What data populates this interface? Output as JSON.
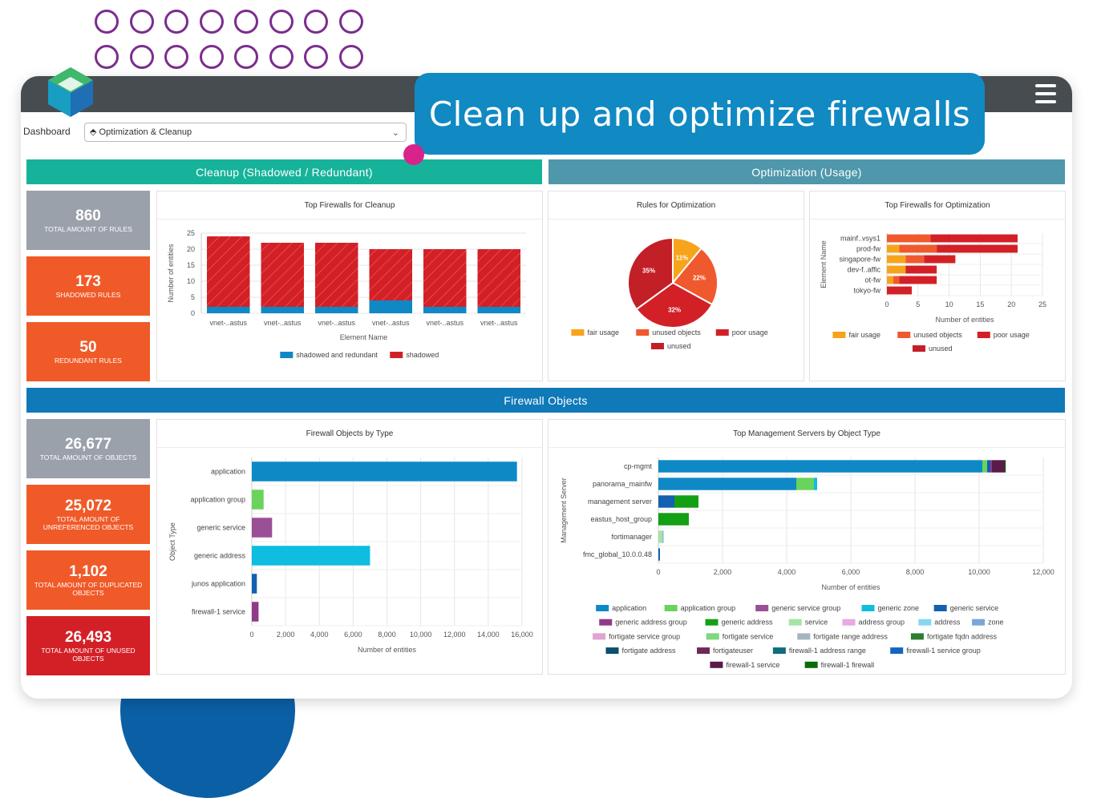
{
  "banner": "Clean up and optimize firewalls",
  "dashboard": {
    "label": "Dashboard",
    "selected": "Optimization & Cleanup"
  },
  "sections": {
    "cleanup": "Cleanup (Shadowed / Redundant)",
    "optimization": "Optimization (Usage)",
    "objects": "Firewall Objects"
  },
  "colors": {
    "teal": "#16b39a",
    "slate": "#4f97ab",
    "blue": "#1079b8",
    "gray": "#9aa1ab",
    "orange": "#f05a28",
    "red": "#d32027",
    "fair": "#f6a41b",
    "unused_objects": "#f0592d",
    "poor": "#d32027"
  },
  "kpis_rules": [
    {
      "num": "860",
      "label": "TOTAL AMOUNT OF RULES",
      "color": "gray"
    },
    {
      "num": "173",
      "label": "SHADOWED RULES",
      "color": "orange"
    },
    {
      "num": "50",
      "label": "REDUNDANT RULES",
      "color": "orange"
    }
  ],
  "kpis_objects": [
    {
      "num": "26,677",
      "label": "TOTAL AMOUNT OF OBJECTS",
      "color": "gray"
    },
    {
      "num": "25,072",
      "label": "TOTAL AMOUNT OF UNREFERENCED OBJECTS",
      "color": "orange"
    },
    {
      "num": "1,102",
      "label": "TOTAL AMOUNT OF DUPLICATED OBJECTS",
      "color": "orange"
    },
    {
      "num": "26,493",
      "label": "TOTAL AMOUNT OF UNUSED OBJECTS",
      "color": "red"
    }
  ],
  "chart_data": [
    {
      "type": "bar",
      "title": "Top Firewalls for Cleanup",
      "categories": [
        "vnet-..astus",
        "vnet-..astus",
        "vnet-..astus",
        "vnet-..astus",
        "vnet-..astus",
        "vnet-..astus"
      ],
      "series": [
        {
          "name": "shadowed and redundant",
          "values": [
            2,
            2,
            2,
            4,
            2,
            2
          ],
          "color": "#0e89c6"
        },
        {
          "name": "shadowed",
          "values": [
            22,
            20,
            20,
            16,
            18,
            18
          ],
          "color": "#d32027"
        }
      ],
      "stacked": true,
      "xlabel": "Element Name",
      "ylabel": "Number of entities",
      "ylim": [
        0,
        25
      ],
      "yticks": [
        0,
        5,
        10,
        15,
        20,
        25
      ],
      "legend": "bottom"
    },
    {
      "type": "pie",
      "title": "Rules for Optimization",
      "slices": [
        {
          "name": "fair usage",
          "value": 11,
          "label": "11%",
          "color": "#f6a41b"
        },
        {
          "name": "unused objects",
          "value": 22,
          "label": "22%",
          "color": "#f0592d"
        },
        {
          "name": "poor usage",
          "value": 32,
          "label": "32%",
          "color": "#d32027"
        },
        {
          "name": "unused",
          "value": 35,
          "label": "35%",
          "color": "#c31f26"
        }
      ],
      "legend": "bottom"
    },
    {
      "type": "bar",
      "orientation": "horizontal",
      "title": "Top Firewalls for Optimization",
      "categories": [
        "mainf..vsys1",
        "prod-fw",
        "singapore-fw",
        "dev-f..affic",
        "ot-fw",
        "tokyo-fw"
      ],
      "series": [
        {
          "name": "fair usage",
          "values": [
            0,
            2,
            3,
            3,
            1,
            0
          ],
          "color": "#f6a41b"
        },
        {
          "name": "unused objects",
          "values": [
            7,
            6,
            3,
            0,
            1,
            0
          ],
          "color": "#f0592d"
        },
        {
          "name": "poor usage",
          "values": [
            14,
            13,
            5,
            5,
            6,
            4
          ],
          "color": "#d32027"
        },
        {
          "name": "unused",
          "values": [
            0,
            0,
            0,
            0,
            0,
            0
          ],
          "color": "#c31f26"
        }
      ],
      "stacked": true,
      "xlabel": "Number of entities",
      "ylabel": "Element Name",
      "xlim": [
        0,
        25
      ],
      "xticks": [
        0,
        5,
        10,
        15,
        20,
        25
      ],
      "legend": "bottom"
    },
    {
      "type": "bar",
      "orientation": "horizontal",
      "title": "Firewall Objects by Type",
      "categories": [
        "application",
        "application group",
        "generic service",
        "generic address",
        "junos application",
        "firewall-1 service"
      ],
      "values": [
        15700,
        700,
        1200,
        7000,
        300,
        400
      ],
      "colors": [
        "#0e89c6",
        "#6ad35b",
        "#9b4f96",
        "#0fbde0",
        "#1361b0",
        "#8f3b86"
      ],
      "xlabel": "Number of entities",
      "ylabel": "Object Type",
      "xlim": [
        0,
        16000
      ],
      "xticks": [
        "0",
        "2,000",
        "4,000",
        "6,000",
        "8,000",
        "10,000",
        "12,000",
        "14,000",
        "16,000"
      ]
    },
    {
      "type": "bar",
      "orientation": "horizontal",
      "title": "Top Management Servers by Object Type",
      "categories": [
        "cp-mgmt",
        "panorama_mainfw",
        "management server",
        "eastus_host_group",
        "fortimanager",
        "fmc_global_10.0.0.48"
      ],
      "series": [
        {
          "name": "application",
          "values": [
            10100,
            4300,
            0,
            0,
            0,
            0
          ],
          "color": "#0e89c6"
        },
        {
          "name": "application group",
          "values": [
            150,
            550,
            0,
            0,
            0,
            0
          ],
          "color": "#6ad35b"
        },
        {
          "name": "generic service group",
          "values": [
            0,
            0,
            0,
            0,
            0,
            0
          ],
          "color": "#9b4f96"
        },
        {
          "name": "generic zone",
          "values": [
            0,
            100,
            0,
            0,
            0,
            0
          ],
          "color": "#0fbde0"
        },
        {
          "name": "generic service",
          "values": [
            100,
            0,
            500,
            0,
            0,
            50
          ],
          "color": "#1361b0"
        },
        {
          "name": "generic address group",
          "values": [
            50,
            0,
            0,
            0,
            0,
            0
          ],
          "color": "#8f3b86"
        },
        {
          "name": "generic address",
          "values": [
            0,
            0,
            750,
            950,
            0,
            0
          ],
          "color": "#14a014"
        },
        {
          "name": "service",
          "values": [
            0,
            0,
            0,
            0,
            130,
            0
          ],
          "color": "#a6e4a6"
        },
        {
          "name": "address group",
          "values": [
            0,
            0,
            0,
            0,
            0,
            0
          ],
          "color": "#e7a9de"
        },
        {
          "name": "address",
          "values": [
            0,
            0,
            0,
            0,
            0,
            0
          ],
          "color": "#85d8f0"
        },
        {
          "name": "zone",
          "values": [
            0,
            0,
            0,
            0,
            30,
            0
          ],
          "color": "#7aa6d8"
        },
        {
          "name": "fortigate service group",
          "values": [
            0,
            0,
            0,
            0,
            0,
            0
          ],
          "color": "#e0a3cf"
        },
        {
          "name": "fortigate service",
          "values": [
            0,
            0,
            0,
            0,
            0,
            0
          ],
          "color": "#7fd77f"
        },
        {
          "name": "fortigate range address",
          "values": [
            0,
            0,
            0,
            0,
            0,
            0
          ],
          "color": "#a6b4c0"
        },
        {
          "name": "fortigate fqdn address",
          "values": [
            0,
            0,
            0,
            0,
            0,
            0
          ],
          "color": "#2e7d32"
        },
        {
          "name": "fortigate address",
          "values": [
            0,
            0,
            0,
            0,
            0,
            0
          ],
          "color": "#0b4f6c"
        },
        {
          "name": "fortigateuser",
          "values": [
            0,
            0,
            0,
            0,
            0,
            0
          ],
          "color": "#6d2a57"
        },
        {
          "name": "firewall-1 address range",
          "values": [
            0,
            0,
            0,
            0,
            0,
            0
          ],
          "color": "#116d7a"
        },
        {
          "name": "firewall-1 service group",
          "values": [
            0,
            0,
            0,
            0,
            0,
            0
          ],
          "color": "#1565c0"
        },
        {
          "name": "firewall-1 service",
          "values": [
            400,
            0,
            0,
            0,
            0,
            0
          ],
          "color": "#5a1a4a"
        },
        {
          "name": "firewall-1 firewall",
          "values": [
            30,
            0,
            0,
            0,
            0,
            0
          ],
          "color": "#0b6b0b"
        }
      ],
      "stacked": true,
      "xlabel": "Number of entities",
      "ylabel": "Management Server",
      "xlim": [
        0,
        12000
      ],
      "xticks": [
        "0",
        "2,000",
        "4,000",
        "6,000",
        "8,000",
        "10,000",
        "12,000"
      ],
      "legend": "bottom"
    }
  ]
}
